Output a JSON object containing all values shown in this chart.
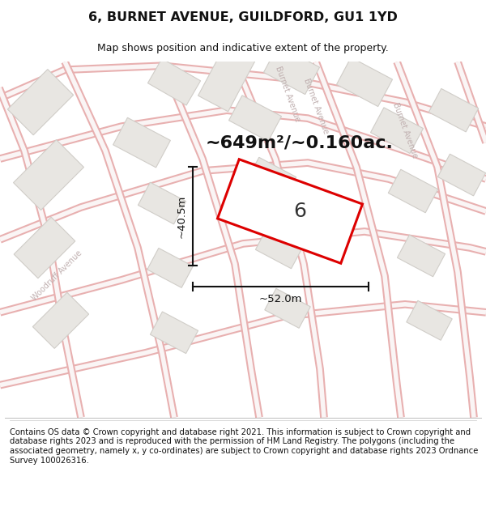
{
  "title": "6, BURNET AVENUE, GUILDFORD, GU1 1YD",
  "subtitle": "Map shows position and indicative extent of the property.",
  "area_text": "~649m²/~0.160ac.",
  "dim_width": "~52.0m",
  "dim_height": "~40.5m",
  "number_label": "6",
  "footer": "Contains OS data © Crown copyright and database right 2021. This information is subject to Crown copyright and database rights 2023 and is reproduced with the permission of HM Land Registry. The polygons (including the associated geometry, namely x, y co-ordinates) are subject to Crown copyright and database rights 2023 Ordnance Survey 100026316.",
  "map_bg": "#f5f4f0",
  "road_edge_color": "#e8b0b0",
  "road_fill_color": "#faf5f5",
  "building_fill": "#e8e6e2",
  "building_edge": "#d0cdc8",
  "highlight_color": "#dd0000",
  "property_fill": "#ffffff",
  "dim_color": "#111111",
  "title_color": "#111111",
  "street_label_color": "#c0b0b0",
  "area_color": "#111111"
}
